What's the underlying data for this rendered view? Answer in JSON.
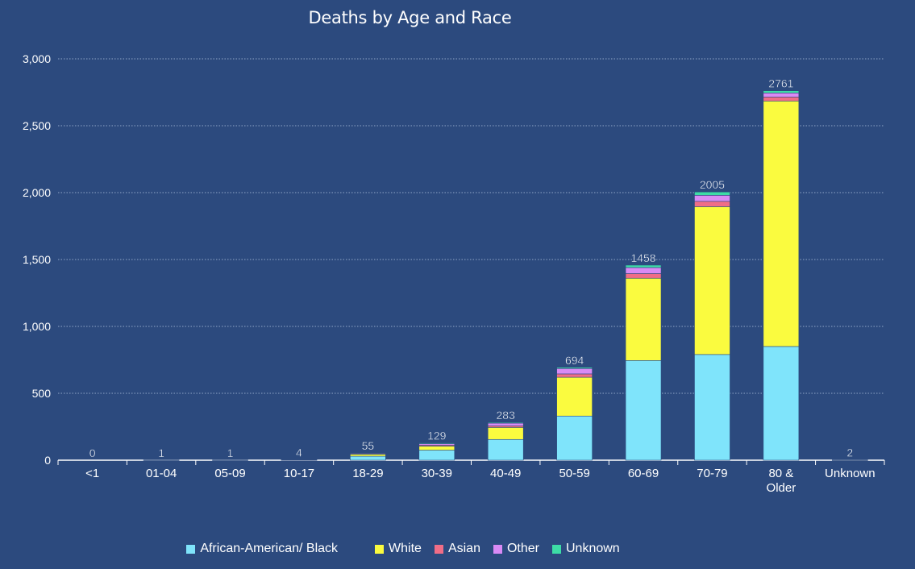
{
  "chart_data": {
    "type": "bar",
    "stacked": true,
    "title": "Deaths by Age and Race",
    "xlabel": "",
    "ylabel": "",
    "ylim": [
      0,
      3000
    ],
    "yticks": [
      "0",
      "500",
      "1,000",
      "1,500",
      "2,000",
      "2,500",
      "3,000"
    ],
    "ytick_values": [
      0,
      500,
      1000,
      1500,
      2000,
      2500,
      3000
    ],
    "grid": true,
    "legend_position": "bottom",
    "categories": [
      "<1",
      "01-04",
      "05-09",
      "10-17",
      "18-29",
      "30-39",
      "40-49",
      "50-59",
      "60-69",
      "70-79",
      "80 & Older",
      "Unknown"
    ],
    "totals": [
      0,
      1,
      1,
      4,
      55,
      129,
      283,
      694,
      1458,
      2005,
      2761,
      2
    ],
    "series": [
      {
        "name": "African-American/ Black",
        "color": "#7fe4fb",
        "values": [
          0,
          1,
          1,
          3,
          30,
          75,
          155,
          330,
          745,
          790,
          850,
          1
        ]
      },
      {
        "name": "White",
        "color": "#fafb3f",
        "values": [
          0,
          0,
          0,
          1,
          15,
          30,
          90,
          290,
          615,
          1105,
          1835,
          1
        ]
      },
      {
        "name": "Asian",
        "color": "#f06d87",
        "values": [
          0,
          0,
          0,
          0,
          3,
          8,
          12,
          25,
          35,
          40,
          30,
          0
        ]
      },
      {
        "name": "Other",
        "color": "#d98af5",
        "values": [
          0,
          0,
          0,
          0,
          5,
          10,
          20,
          40,
          45,
          45,
          30,
          0
        ]
      },
      {
        "name": "Unknown",
        "color": "#3ddca6",
        "values": [
          0,
          0,
          0,
          0,
          2,
          6,
          6,
          9,
          18,
          25,
          16,
          0
        ]
      }
    ]
  }
}
